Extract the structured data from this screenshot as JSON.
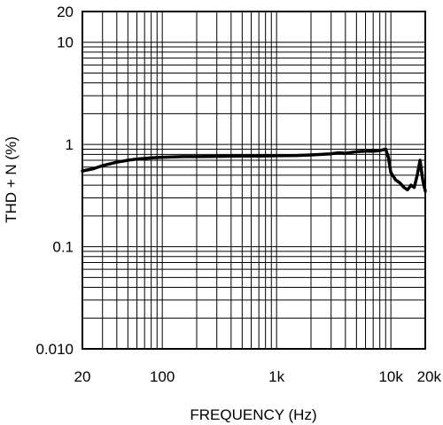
{
  "chart_data": {
    "type": "line",
    "title": "",
    "xlabel": "FREQUENCY (Hz)",
    "ylabel": "THD + N (%)",
    "x_scale": "log",
    "y_scale": "log",
    "xlim": [
      20,
      20000
    ],
    "ylim": [
      0.01,
      20
    ],
    "grid": true,
    "x_ticks": [
      {
        "value": 20,
        "label": "20"
      },
      {
        "value": 100,
        "label": "100"
      },
      {
        "value": 1000,
        "label": "1k"
      },
      {
        "value": 10000,
        "label": "10k"
      },
      {
        "value": 20000,
        "label": "20k"
      }
    ],
    "y_ticks": [
      {
        "value": 0.01,
        "label": "0.010"
      },
      {
        "value": 0.1,
        "label": "0.1"
      },
      {
        "value": 1,
        "label": "1"
      },
      {
        "value": 10,
        "label": "10"
      },
      {
        "value": 20,
        "label": "20"
      }
    ],
    "series": [
      {
        "color": "#000000",
        "points": [
          [
            20,
            0.55
          ],
          [
            25,
            0.58
          ],
          [
            30,
            0.62
          ],
          [
            40,
            0.67
          ],
          [
            50,
            0.7
          ],
          [
            60,
            0.72
          ],
          [
            80,
            0.74
          ],
          [
            100,
            0.75
          ],
          [
            150,
            0.76
          ],
          [
            200,
            0.76
          ],
          [
            300,
            0.765
          ],
          [
            500,
            0.77
          ],
          [
            700,
            0.77
          ],
          [
            1000,
            0.775
          ],
          [
            1500,
            0.78
          ],
          [
            2000,
            0.79
          ],
          [
            3000,
            0.81
          ],
          [
            3500,
            0.83
          ],
          [
            4000,
            0.82
          ],
          [
            5000,
            0.85
          ],
          [
            6000,
            0.86
          ],
          [
            7000,
            0.86
          ],
          [
            8000,
            0.87
          ],
          [
            9000,
            0.9
          ],
          [
            9500,
            0.75
          ],
          [
            10000,
            0.53
          ],
          [
            11000,
            0.45
          ],
          [
            12000,
            0.42
          ],
          [
            13000,
            0.38
          ],
          [
            14000,
            0.36
          ],
          [
            15000,
            0.4
          ],
          [
            16000,
            0.38
          ],
          [
            17000,
            0.5
          ],
          [
            18000,
            0.7
          ],
          [
            19000,
            0.45
          ],
          [
            20000,
            0.35
          ]
        ]
      }
    ]
  }
}
